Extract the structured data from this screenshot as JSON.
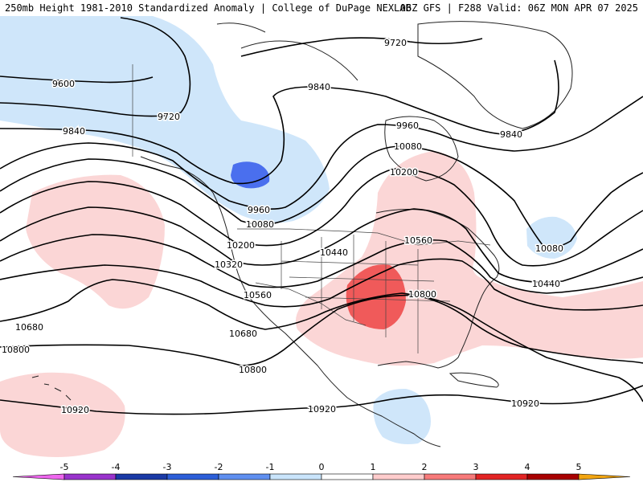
{
  "header": {
    "left": "250mb Height 1981-2010 Standardized Anomaly | College of DuPage NEXLAB",
    "right": "06Z GFS | F288 Valid: 06Z MON APR 07 2025"
  },
  "contour_labels": [
    "9600",
    "9720",
    "9720",
    "9840",
    "9840",
    "9840",
    "9960",
    "9960",
    "10080",
    "10080",
    "10080",
    "10200",
    "10200",
    "10320",
    "10440",
    "10440",
    "10560",
    "10560",
    "10680",
    "10680",
    "10800",
    "10800",
    "10800",
    "10920",
    "10920",
    "10920"
  ],
  "colorbar": {
    "tick_labels": [
      "-5",
      "-4",
      "-3",
      "-2",
      "-1",
      "0",
      "1",
      "2",
      "3",
      "4",
      "5"
    ],
    "colors": [
      "#ee66ee",
      "#9933cc",
      "#1a3aa6",
      "#2c5ed8",
      "#5f8ff0",
      "#c9e4fb",
      "#ffffff",
      "#ffcccc",
      "#f77a7a",
      "#e22424",
      "#a80000",
      "#f2a510"
    ]
  },
  "colors": {
    "negative_light": "#cfe6fa",
    "negative_dark": "#4a6fee",
    "positive_light": "#fbd6d6",
    "positive_dark": "#f05a5a"
  }
}
